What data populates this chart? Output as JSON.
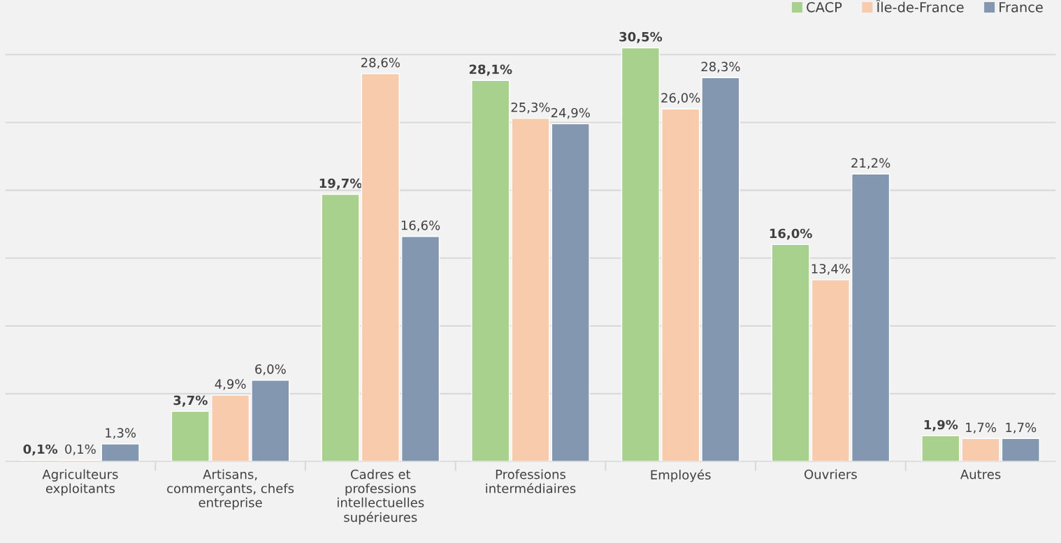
{
  "chart_data": {
    "type": "bar",
    "categories": [
      "Agriculteurs\nexploitants",
      "Artisans,\ncommerçants, chefs\nentreprise",
      "Cadres et\nprofessions\nintellectuelles\nsupérieures",
      "Professions\nintermédiaires",
      "Employés",
      "Ouvriers",
      "Autres"
    ],
    "series": [
      {
        "name": "CACP",
        "color": "#a9d18e",
        "values": [
          0.1,
          3.7,
          19.7,
          28.1,
          30.5,
          16.0,
          1.9
        ],
        "value_labels": [
          "0,1%",
          "3,7%",
          "19,7%",
          "28,1%",
          "30,5%",
          "16,0%",
          "1,9%"
        ]
      },
      {
        "name": "Île-de-France",
        "color": "#f8cbad",
        "values": [
          0.1,
          4.9,
          28.6,
          25.3,
          26.0,
          13.4,
          1.7
        ],
        "value_labels": [
          "0,1%",
          "4,9%",
          "28,6%",
          "25,3%",
          "26,0%",
          "13,4%",
          "1,7%"
        ]
      },
      {
        "name": "France",
        "color": "#8497b0",
        "values": [
          1.3,
          6.0,
          16.6,
          24.9,
          28.3,
          21.2,
          1.7
        ],
        "value_labels": [
          "1,3%",
          "6,0%",
          "16,6%",
          "24,9%",
          "28,3%",
          "21,2%",
          "1,7%"
        ]
      }
    ],
    "yticks": [
      {
        "value": 0,
        "label": null
      },
      {
        "value": 5,
        "label": null
      },
      {
        "value": 10,
        "label": null
      },
      {
        "value": 15,
        "label": null
      },
      {
        "value": 20,
        "label": null
      },
      {
        "value": 25,
        "label": null
      },
      {
        "value": 30,
        "label": null
      }
    ],
    "grid": "y",
    "legend": "top right",
    "tick_labels": "x"
  }
}
